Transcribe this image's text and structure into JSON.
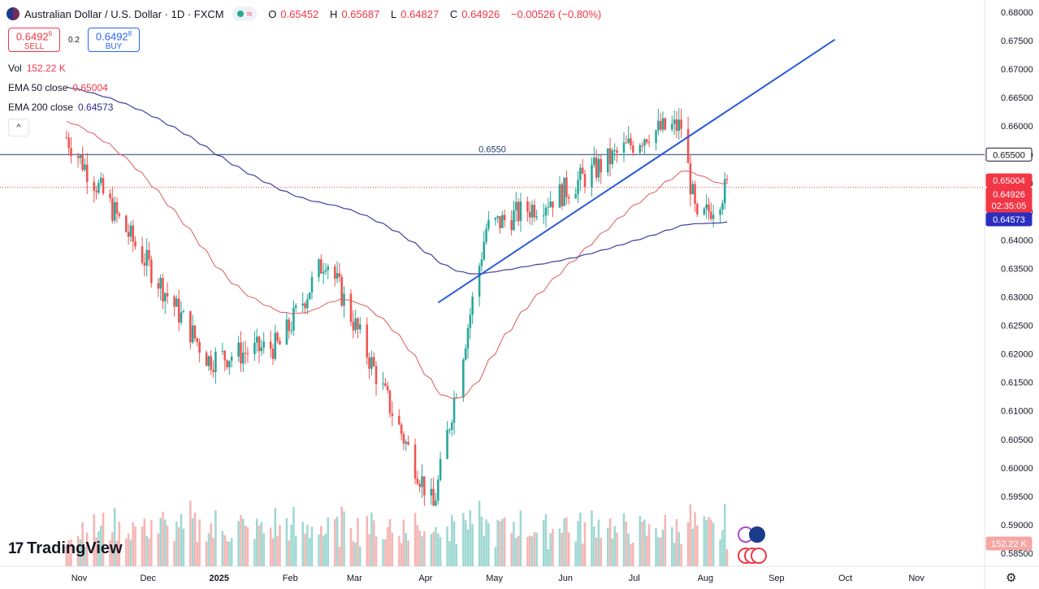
{
  "header": {
    "title": "Australian Dollar / U.S. Dollar · 1D · FXCM",
    "ohlc": [
      {
        "k": "O",
        "v": "0.65452"
      },
      {
        "k": "H",
        "v": "0.65687"
      },
      {
        "k": "L",
        "v": "0.64827"
      },
      {
        "k": "C",
        "v": "0.64926"
      },
      {
        "k": "",
        "v": "−0.00526 (−0.80%)"
      }
    ]
  },
  "trade": {
    "sell_price": "0.6492",
    "sell_price_sup": "6",
    "sell_label": "SELL",
    "spread": "0.2",
    "buy_price": "0.6492",
    "buy_price_sup": "8",
    "buy_label": "BUY"
  },
  "indicators": {
    "vol_label": "Vol",
    "vol_value": "152.22 K",
    "ema50_label": "EMA 50 close",
    "ema50_value": "0.65004",
    "ema200_label": "EMA 200 close",
    "ema200_value": "0.64573",
    "collapse_glyph": "^"
  },
  "logo_text": "TradingView",
  "colors": {
    "up": "#26a69a",
    "down": "#ef5350",
    "ema50": "#e05a5a",
    "ema200": "#3f3fa0",
    "trend": "#2a5bd7",
    "hline": "#1e3a6e",
    "accent_blue": "#2962ff",
    "accent_red": "#f23645"
  },
  "chart_data": {
    "type": "candlestick",
    "ylim": [
      0.583,
      0.681
    ],
    "y_ticks": [
      "0.68000",
      "0.67500",
      "0.67000",
      "0.66500",
      "0.66000",
      "0.65500",
      "0.65000",
      "0.64500",
      "0.64000",
      "0.63500",
      "0.63000",
      "0.62500",
      "0.62000",
      "0.61500",
      "0.61000",
      "0.60500",
      "0.60000",
      "0.59500",
      "0.59000",
      "0.58500"
    ],
    "x_labels": [
      "Nov",
      "Dec",
      "2025",
      "Feb",
      "Mar",
      "Apr",
      "May",
      "Jun",
      "Jul",
      "Aug",
      "Sep",
      "Oct",
      "Nov"
    ],
    "price_tags": [
      {
        "label": "0.65500",
        "value": 0.655,
        "style": "outline"
      },
      {
        "label": "0.65004",
        "value": 0.65004,
        "style": "red"
      },
      {
        "label": "0.64926",
        "value": 0.64926,
        "style": "red",
        "sub": "02:35:05"
      },
      {
        "label": "0.64573",
        "value": 0.64573,
        "style": "blue"
      },
      {
        "label": "152.22 K",
        "value": 0,
        "style": "volume"
      }
    ],
    "hline": {
      "value": 0.655,
      "label": "0.6550"
    },
    "trendline": {
      "from": {
        "date": "2025-04-10",
        "value": 0.629
      },
      "to": {
        "date": "2025-09-30",
        "value": 0.6752
      }
    },
    "key_points": [
      {
        "date": "2024-10-30",
        "close": 0.658
      },
      {
        "date": "2024-12-31",
        "close": 0.619
      },
      {
        "date": "2025-01-31",
        "close": 0.6215
      },
      {
        "date": "2025-02-20",
        "close": 0.637
      },
      {
        "date": "2025-04-08",
        "close": 0.593
      },
      {
        "date": "2025-05-01",
        "close": 0.642
      },
      {
        "date": "2025-06-02",
        "close": 0.648
      },
      {
        "date": "2025-07-11",
        "close": 0.659
      },
      {
        "date": "2025-07-25",
        "close": 0.66
      },
      {
        "date": "2025-08-01",
        "close": 0.6425
      },
      {
        "date": "2025-08-14",
        "close": 0.6493
      }
    ],
    "series": [
      {
        "name": "EMA 50 close",
        "last": 0.65004
      },
      {
        "name": "EMA 200 close",
        "last": 0.64573
      }
    ]
  }
}
